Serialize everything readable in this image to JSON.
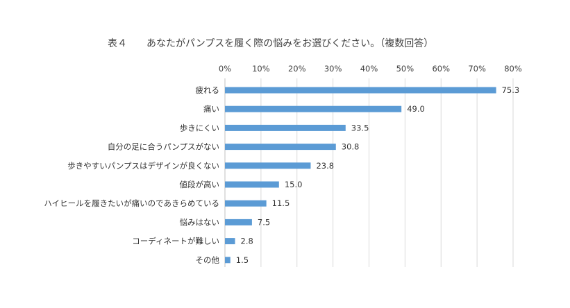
{
  "chart_data": {
    "type": "bar",
    "orientation": "horizontal",
    "title": "表４　　あなたがパンプスを履く際の悩みをお選びください。（複数回答）",
    "xlabel": "",
    "ylabel": "",
    "xlim": [
      0,
      80
    ],
    "x_ticks": [
      "0%",
      "10%",
      "20%",
      "30%",
      "40%",
      "50%",
      "60%",
      "70%",
      "80%"
    ],
    "x_tick_values": [
      0,
      10,
      20,
      30,
      40,
      50,
      60,
      70,
      80
    ],
    "axis_position": "top",
    "grid": true,
    "legend": "none",
    "bar_color": "#5b9bd5",
    "categories": [
      "疲れる",
      "痛い",
      "歩きにくい",
      "自分の足に合うパンプスがない",
      "歩きやすいパンプスはデザインが良くない",
      "値段が高い",
      "ハイヒールを履きたいが痛いのであきらめている",
      "悩みはない",
      "コーディネートが難しい",
      "その他"
    ],
    "values": [
      75.3,
      49.0,
      33.5,
      30.8,
      23.8,
      15.0,
      11.5,
      7.5,
      2.8,
      1.5
    ],
    "value_labels": [
      "75.3",
      "49.0",
      "33.5",
      "30.8",
      "23.8",
      "15.0",
      "11.5",
      "7.5",
      "2.8",
      "1.5"
    ]
  }
}
